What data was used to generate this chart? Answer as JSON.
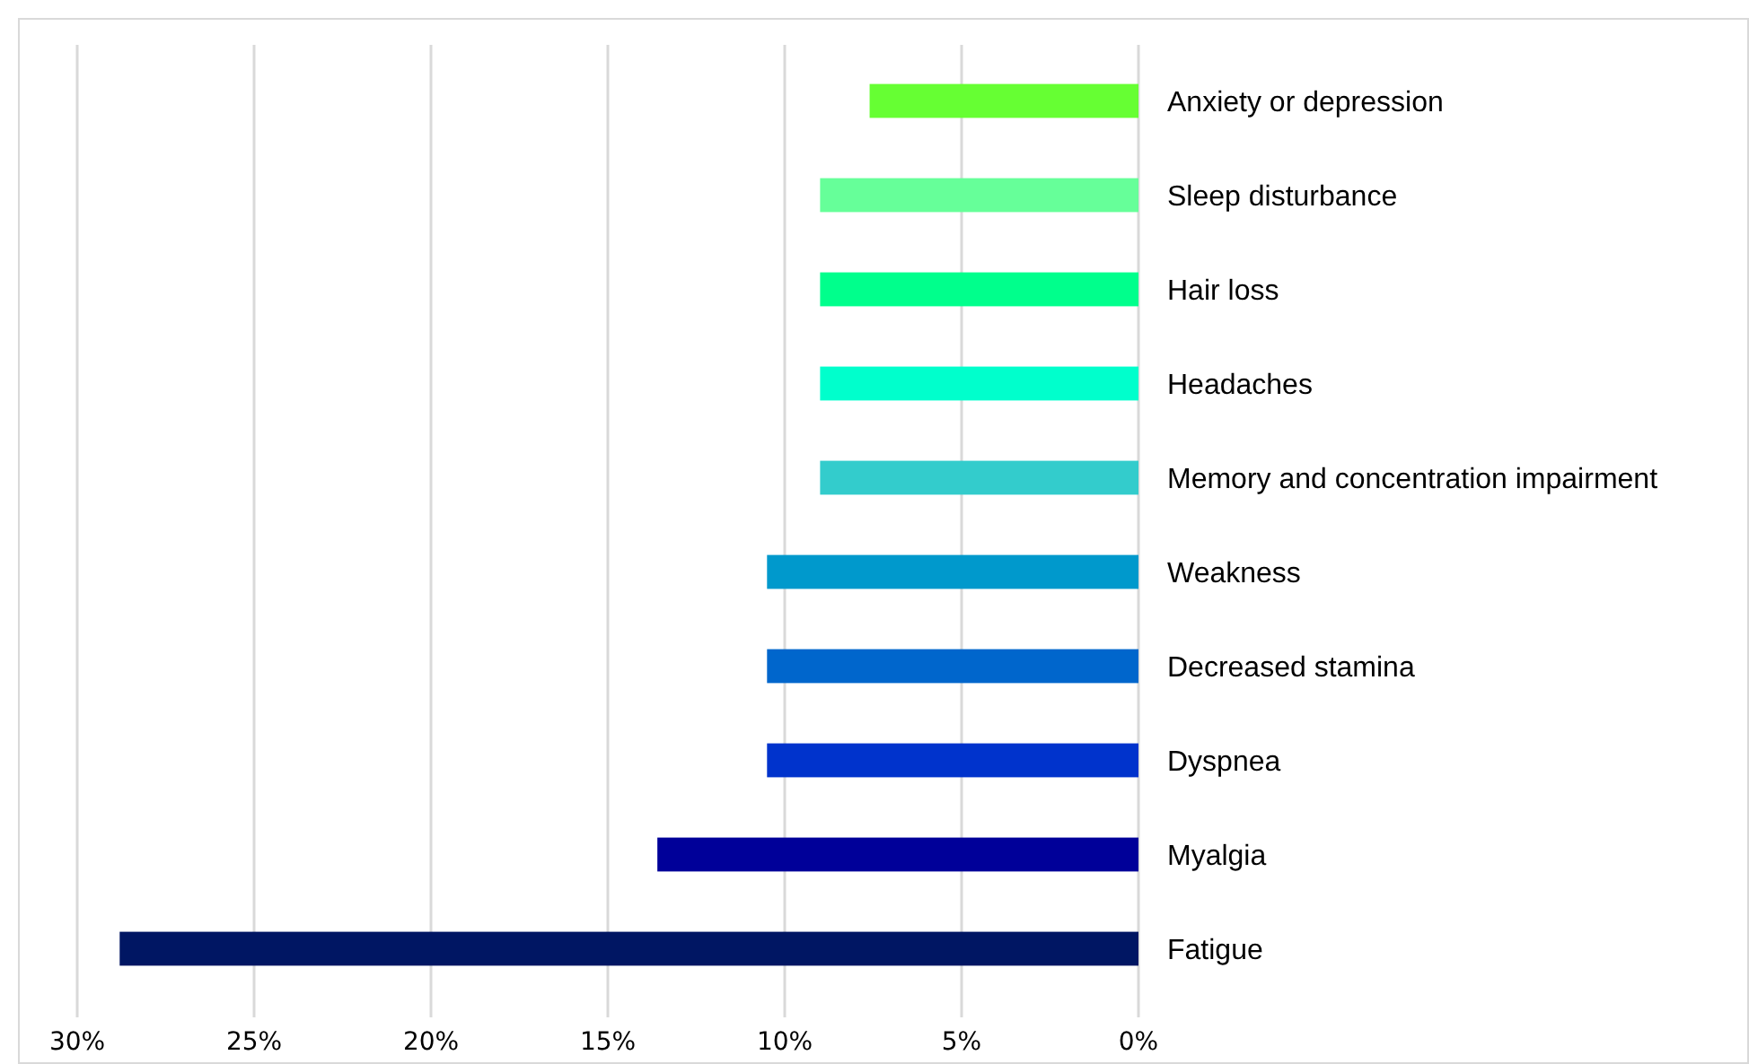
{
  "chart_data": {
    "type": "bar",
    "orientation": "horizontal",
    "categories": [
      "Anxiety or depression",
      "Sleep disturbance",
      "Hair loss",
      "Headaches",
      "Memory and concentration impairment",
      "Weakness",
      "Decreased stamina",
      "Dyspnea",
      "Myalgia",
      "Fatigue"
    ],
    "values": [
      7.6,
      9.0,
      9.0,
      9.0,
      9.0,
      10.5,
      10.5,
      10.5,
      13.6,
      28.8
    ],
    "colors": [
      "#66ff33",
      "#66ff99",
      "#00ff8c",
      "#00ffcc",
      "#33cccc",
      "#0099cc",
      "#0066cc",
      "#0033cc",
      "#000099",
      "#001663"
    ],
    "xlim": [
      30,
      0
    ],
    "xticks": [
      {
        "value": 30,
        "label": "30%"
      },
      {
        "value": 25,
        "label": "25%"
      },
      {
        "value": 20,
        "label": "20%"
      },
      {
        "value": 15,
        "label": "15%"
      },
      {
        "value": 10,
        "label": "10%"
      },
      {
        "value": 5,
        "label": "5%"
      },
      {
        "value": 0,
        "label": "0%"
      }
    ],
    "grid": "x"
  }
}
